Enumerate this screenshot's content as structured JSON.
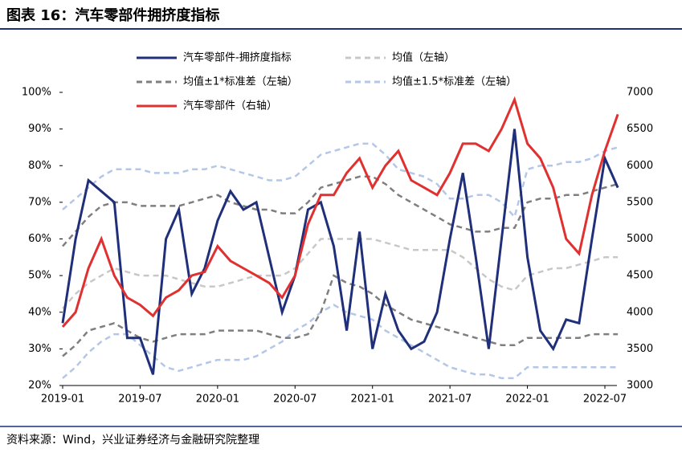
{
  "chart_data": {
    "type": "line",
    "title": "图表 16：汽车零部件拥挤度指标",
    "source": "资料来源：Wind，兴业证券经济与金融研究院整理",
    "categories": [
      "2019-01",
      null,
      null,
      null,
      null,
      null,
      "2019-07",
      null,
      null,
      null,
      null,
      null,
      "2020-01",
      null,
      null,
      null,
      null,
      null,
      "2020-07",
      null,
      null,
      null,
      null,
      null,
      "2021-01",
      null,
      null,
      null,
      null,
      null,
      "2021-07",
      null,
      null,
      null,
      null,
      null,
      "2022-01",
      null,
      null,
      null,
      null,
      null,
      "2022-07",
      null
    ],
    "ylim": [
      20,
      100
    ],
    "yticks": [
      {
        "value": 20,
        "label": "20%"
      },
      {
        "value": 30,
        "label": "30%"
      },
      {
        "value": 40,
        "label": "40%"
      },
      {
        "value": 50,
        "label": "50%"
      },
      {
        "value": 60,
        "label": "60%"
      },
      {
        "value": 70,
        "label": "70%"
      },
      {
        "value": 80,
        "label": "80%"
      },
      {
        "value": 90,
        "label": "90%"
      },
      {
        "value": 100,
        "label": "100%"
      }
    ],
    "y2lim": [
      3000,
      7000
    ],
    "y2ticks": [
      3000,
      3500,
      4000,
      4500,
      5000,
      5500,
      6000,
      6500,
      7000
    ],
    "series": [
      {
        "name": "汽车零部件-拥挤度指标",
        "color": "#1f2f7a",
        "dash": false,
        "values": [
          37,
          60,
          76,
          73,
          70,
          33,
          33,
          23,
          60,
          68,
          45,
          52,
          65,
          73,
          68,
          70,
          55,
          40,
          50,
          68,
          70,
          58,
          35,
          62,
          30,
          45,
          35,
          30,
          32,
          40,
          60,
          78,
          55,
          30,
          60,
          90,
          55,
          35,
          30,
          38,
          37,
          60,
          82,
          74
        ]
      },
      {
        "name": "均值（左轴）",
        "color": "#c8c8c8",
        "dash": true,
        "values": [
          41,
          45,
          48,
          50,
          52,
          51,
          50,
          50,
          50,
          49,
          48,
          47,
          47,
          48,
          49,
          50,
          50,
          50,
          52,
          56,
          60,
          60,
          60,
          60,
          60,
          59,
          58,
          57,
          57,
          57,
          57,
          55,
          52,
          49,
          47,
          46,
          50,
          51,
          52,
          52,
          53,
          54,
          55,
          55
        ]
      },
      {
        "name": "均值±1*标准差（左轴）",
        "color": "#7f7f7f",
        "dash": true,
        "values": [
          58,
          62,
          66,
          69,
          70,
          70,
          69,
          69,
          69,
          69,
          70,
          71,
          72,
          70,
          69,
          68,
          68,
          67,
          67,
          70,
          74,
          75,
          76,
          77,
          77,
          75,
          72,
          70,
          68,
          66,
          64,
          63,
          62,
          62,
          63,
          63,
          70,
          71,
          71,
          72,
          72,
          73,
          74,
          75
        ],
        "lower": [
          28,
          31,
          35,
          36,
          37,
          35,
          33,
          32,
          33,
          34,
          34,
          34,
          35,
          35,
          35,
          35,
          34,
          33,
          33,
          34,
          40,
          50,
          48,
          47,
          45,
          42,
          40,
          38,
          37,
          36,
          35,
          34,
          33,
          32,
          31,
          31,
          33,
          33,
          33,
          33,
          33,
          34,
          34,
          34
        ]
      },
      {
        "name": "均值±1.5*标准差（左轴）",
        "color": "#b4c7e7",
        "dash": true,
        "values": [
          68,
          71,
          74,
          77,
          79,
          79,
          79,
          78,
          78,
          78,
          79,
          79,
          80,
          79,
          78,
          77,
          76,
          76,
          77,
          80,
          83,
          84,
          85,
          86,
          86,
          83,
          79,
          78,
          77,
          75,
          71,
          71,
          72,
          72,
          70,
          66,
          79,
          80,
          80,
          81,
          81,
          82,
          84,
          85
        ],
        "lower": [
          22,
          25,
          29,
          32,
          34,
          34,
          31,
          28,
          25,
          24,
          25,
          26,
          27,
          27,
          27,
          28,
          30,
          32,
          35,
          37,
          40,
          42,
          40,
          39,
          38,
          35,
          33,
          31,
          29,
          27,
          25,
          24,
          23,
          23,
          22,
          22,
          25,
          25,
          25,
          25,
          25,
          25,
          25,
          25
        ]
      },
      {
        "name": "汽车零部件（右轴）",
        "color": "#e03030",
        "dash": false,
        "axis": "y2",
        "values": [
          3800,
          4000,
          4600,
          5000,
          4500,
          4200,
          4100,
          3950,
          4200,
          4300,
          4500,
          4550,
          4900,
          4700,
          4600,
          4500,
          4400,
          4200,
          4500,
          5200,
          5600,
          5600,
          5900,
          6100,
          5700,
          6000,
          6200,
          5800,
          5700,
          5600,
          5900,
          6300,
          6300,
          6200,
          6500,
          6900,
          6300,
          6100,
          5700,
          5000,
          4800,
          5600,
          6200,
          6700
        ]
      }
    ]
  }
}
